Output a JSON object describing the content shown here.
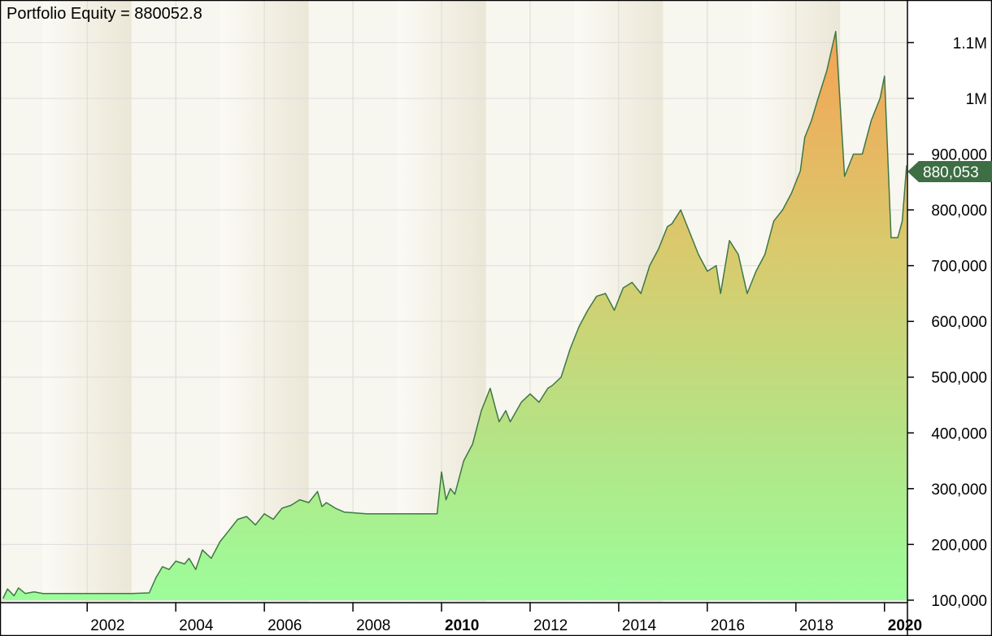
{
  "chart_data": {
    "type": "area",
    "title": "Portfolio Equity = 880052.8",
    "current_value_label": "880,053",
    "xlabel": "",
    "ylabel": "",
    "x_range": [
      2000.05,
      2020.5
    ],
    "ylim": [
      97000,
      1175000
    ],
    "grid": true,
    "x_tick_labels": [
      {
        "year": 2002,
        "label": "2002",
        "bold": false
      },
      {
        "year": 2004,
        "label": "2004",
        "bold": false
      },
      {
        "year": 2006,
        "label": "2006",
        "bold": false
      },
      {
        "year": 2008,
        "label": "2008",
        "bold": false
      },
      {
        "year": 2010,
        "label": "2010",
        "bold": true
      },
      {
        "year": 2012,
        "label": "2012",
        "bold": false
      },
      {
        "year": 2014,
        "label": "2014",
        "bold": false
      },
      {
        "year": 2016,
        "label": "2016",
        "bold": false
      },
      {
        "year": 2018,
        "label": "2018",
        "bold": false
      },
      {
        "year": 2020,
        "label": "2020",
        "bold": true
      }
    ],
    "y_tick_labels": [
      {
        "value": 100000,
        "label": "100,000"
      },
      {
        "value": 200000,
        "label": "200,000"
      },
      {
        "value": 300000,
        "label": "300,000"
      },
      {
        "value": 400000,
        "label": "400,000"
      },
      {
        "value": 500000,
        "label": "500,000"
      },
      {
        "value": 600000,
        "label": "600,000"
      },
      {
        "value": 700000,
        "label": "700,000"
      },
      {
        "value": 800000,
        "label": "800,000"
      },
      {
        "value": 900000,
        "label": "900,000"
      },
      {
        "value": 1000000,
        "label": "1M"
      },
      {
        "value": 1100000,
        "label": "1.1M"
      }
    ],
    "series": [
      {
        "x": [
          2000.1,
          2000.2,
          2000.35,
          2000.45,
          2000.6,
          2000.8,
          2001.0,
          2001.5,
          2002.0,
          2002.5,
          2003.0,
          2003.4,
          2003.55,
          2003.7,
          2003.85,
          2004.0,
          2004.2,
          2004.3,
          2004.45,
          2004.6,
          2004.8,
          2005.0,
          2005.2,
          2005.4,
          2005.6,
          2005.8,
          2006.0,
          2006.2,
          2006.4,
          2006.6,
          2006.8,
          2007.0,
          2007.2,
          2007.3,
          2007.4,
          2007.6,
          2007.8,
          2008.3,
          2009.0,
          2009.6,
          2009.9,
          2010.0,
          2010.1,
          2010.2,
          2010.3,
          2010.5,
          2010.7,
          2010.9,
          2011.1,
          2011.3,
          2011.45,
          2011.55,
          2011.8,
          2012.0,
          2012.2,
          2012.4,
          2012.5,
          2012.7,
          2012.9,
          2013.1,
          2013.3,
          2013.5,
          2013.7,
          2013.9,
          2014.1,
          2014.3,
          2014.5,
          2014.7,
          2014.9,
          2015.1,
          2015.2,
          2015.4,
          2015.6,
          2015.8,
          2016.0,
          2016.2,
          2016.3,
          2016.5,
          2016.7,
          2016.9,
          2017.1,
          2017.3,
          2017.5,
          2017.7,
          2017.9,
          2018.1,
          2018.2,
          2018.35,
          2018.5,
          2018.7,
          2018.9,
          2019.1,
          2019.3,
          2019.5,
          2019.7,
          2019.9,
          2020.0,
          2020.15,
          2020.3,
          2020.4,
          2020.5
        ],
        "values": [
          103000,
          120000,
          108000,
          122000,
          112000,
          115000,
          112000,
          112000,
          112000,
          112000,
          112000,
          113000,
          140000,
          160000,
          155000,
          170000,
          165000,
          175000,
          155000,
          190000,
          175000,
          205000,
          225000,
          245000,
          250000,
          235000,
          255000,
          245000,
          265000,
          270000,
          280000,
          275000,
          295000,
          268000,
          275000,
          265000,
          258000,
          255000,
          255000,
          255000,
          255000,
          330000,
          280000,
          300000,
          290000,
          350000,
          380000,
          440000,
          480000,
          420000,
          440000,
          420000,
          455000,
          470000,
          455000,
          480000,
          485000,
          500000,
          550000,
          590000,
          620000,
          645000,
          650000,
          620000,
          660000,
          670000,
          650000,
          700000,
          730000,
          770000,
          775000,
          800000,
          760000,
          720000,
          690000,
          700000,
          650000,
          745000,
          720000,
          650000,
          690000,
          720000,
          780000,
          800000,
          830000,
          870000,
          930000,
          960000,
          1000000,
          1050000,
          1120000,
          860000,
          900000,
          900000,
          960000,
          1000000,
          1040000,
          750000,
          750000,
          780000,
          880053
        ]
      }
    ]
  }
}
